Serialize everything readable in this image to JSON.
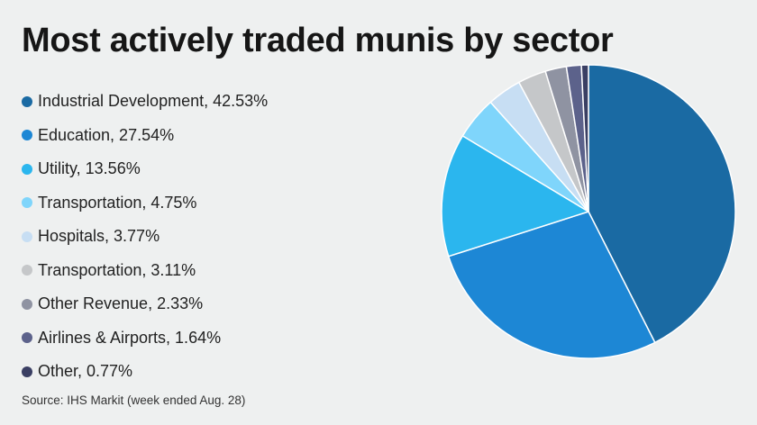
{
  "chart_data": {
    "type": "pie",
    "title": "Most actively traded munis by sector",
    "source": "Source: IHS Markit (week ended Aug. 28)",
    "slices": [
      {
        "label": "Industrial Development",
        "value": 42.53,
        "display": "Industrial Development, 42.53%",
        "color": "#1a6aa3"
      },
      {
        "label": "Education",
        "value": 27.54,
        "display": "Education, 27.54%",
        "color": "#1d87d5"
      },
      {
        "label": "Utility",
        "value": 13.56,
        "display": "Utility, 13.56%",
        "color": "#2bb6ee"
      },
      {
        "label": "Transportation",
        "value": 4.75,
        "display": "Transportation, 4.75%",
        "color": "#7fd5fb"
      },
      {
        "label": "Hospitals",
        "value": 3.77,
        "display": "Hospitals, 3.77%",
        "color": "#c7def3"
      },
      {
        "label": "Transportation",
        "value": 3.11,
        "display": "Transportation, 3.11%",
        "color": "#c5c7c9"
      },
      {
        "label": "Other Revenue",
        "value": 2.33,
        "display": "Other Revenue, 2.33%",
        "color": "#8f93a2"
      },
      {
        "label": "Airlines & Airports",
        "value": 1.64,
        "display": "Airlines & Airports, 1.64%",
        "color": "#5c628b"
      },
      {
        "label": "Other",
        "value": 0.77,
        "display": "Other, 0.77%",
        "color": "#3a3f63"
      }
    ],
    "legend_position": "left",
    "start_angle": "top",
    "direction": "clockwise"
  }
}
